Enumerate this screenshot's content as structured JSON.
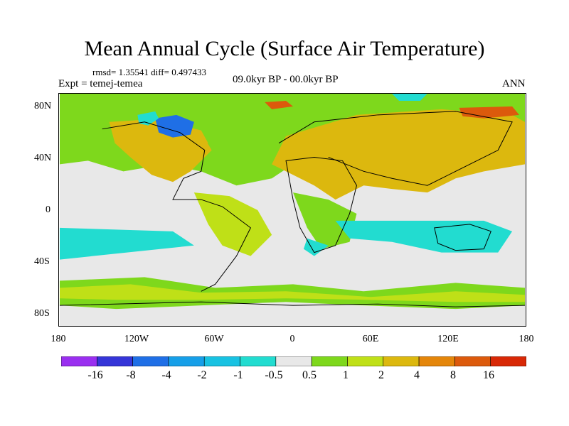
{
  "title": "Mean Annual Cycle (Surface Air Temperature)",
  "stats": "rmsd= 1.35541 diff= 0.497433",
  "experiment": "Expt = temej-temea",
  "period": "09.0kyr BP - 00.0kyr BP",
  "season": "ANN",
  "lat_labels": [
    "80N",
    "40N",
    "0",
    "40S",
    "80S"
  ],
  "lon_labels": [
    "180",
    "120W",
    "60W",
    "0",
    "60E",
    "120E",
    "180"
  ],
  "colorbar": {
    "labels": [
      "-16",
      "-8",
      "-4",
      "-2",
      "-1",
      "-0.5",
      "0.5",
      "1",
      "2",
      "4",
      "8",
      "16"
    ],
    "colors": [
      "#9a2ff0",
      "#3535d8",
      "#1f6fe6",
      "#169fe8",
      "#18c2e2",
      "#22dcd0",
      "#e8e8e8",
      "#7ed81c",
      "#bfe017",
      "#dcb80e",
      "#e4860a",
      "#dc5a0c",
      "#d82806"
    ]
  },
  "map_colors": {
    "ocean_neutral": "#e8e8e8",
    "warm_orange": "#dcb80e",
    "mild_green": "#7ed81c",
    "yellow_green": "#bfe017",
    "cool_cyan": "#22dcd0",
    "cold_blue": "#1f6fe6",
    "hot_red": "#dc5a0c"
  }
}
